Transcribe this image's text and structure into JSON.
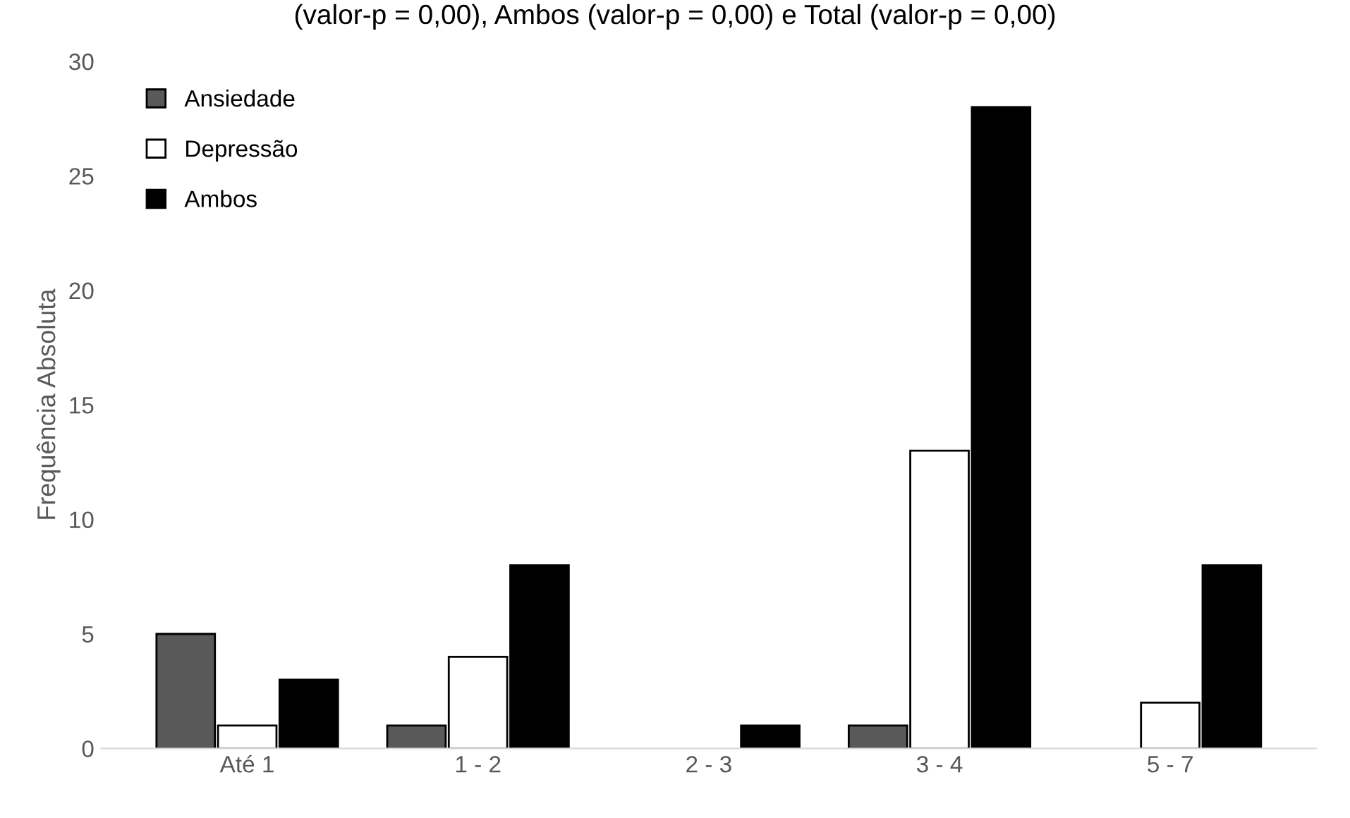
{
  "chart_data": {
    "type": "bar",
    "title": "(valor-p = 0,00), Ambos (valor-p = 0,00) e Total (valor-p = 0,00)",
    "ylabel": "Frequência Absoluta",
    "categories": [
      "Até 1",
      "1 - 2",
      "2 - 3",
      "3 - 4",
      "5 - 7"
    ],
    "series": [
      {
        "name": "Ansiedade",
        "color": "#595959",
        "values": [
          5,
          1,
          0,
          1,
          0
        ]
      },
      {
        "name": "Depressão",
        "color": "#ffffff",
        "values": [
          1,
          4,
          0,
          13,
          2
        ]
      },
      {
        "name": "Ambos",
        "color": "#000000",
        "values": [
          3,
          8,
          1,
          28,
          8
        ]
      }
    ],
    "ylim": [
      0,
      30
    ],
    "yticks": [
      0,
      5,
      10,
      15,
      20,
      25,
      30
    ],
    "grid": false,
    "legend": "top left"
  }
}
